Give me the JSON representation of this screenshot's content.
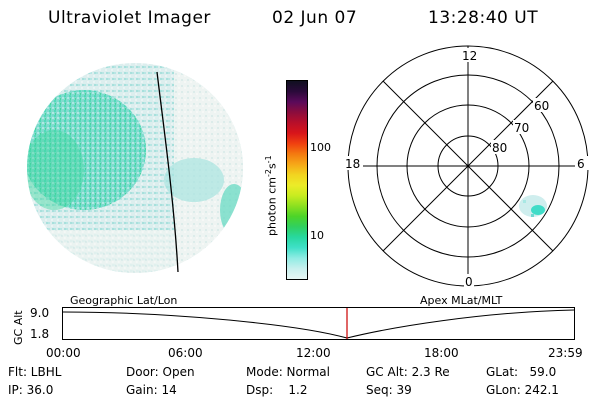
{
  "header": {
    "title": "Ultraviolet Imager",
    "date": "02 Jun 07",
    "time": "13:28:40 UT"
  },
  "colorbar": {
    "label_html_parts": [
      "photon cm",
      "-2",
      "s",
      "-1"
    ],
    "ticks": [
      "100",
      "10"
    ],
    "colors": [
      "#101020",
      "#2a0a3a",
      "#5a0a5a",
      "#8b0d3d",
      "#b80f2a",
      "#d8151a",
      "#f04010",
      "#f47a10",
      "#f6a818",
      "#f2d420",
      "#ecec28",
      "#c8ec20",
      "#8ce020",
      "#4cd428",
      "#30d060",
      "#28d8a0",
      "#40e0c8",
      "#90ece4",
      "#c8f0ee",
      "#e8f6f4"
    ]
  },
  "polar": {
    "labels": {
      "top": "12",
      "bottom": "0",
      "left": "18",
      "right": "6",
      "lat60": "60",
      "lat70": "70",
      "lat80": "80"
    }
  },
  "timeline": {
    "left_title": "Geographic Lat/Lon",
    "right_title": "Apex MLat/MLT",
    "ylabel": "GC Alt",
    "y_top": "9.0",
    "y_bottom": "1.8",
    "x_ticks": [
      "00:00",
      "06:00",
      "12:00",
      "18:00",
      "23:59"
    ],
    "marker_color": "#cc0000"
  },
  "info": {
    "flt": "Flt: LBHL",
    "ip": "IP: 36.0",
    "door": "Door: Open",
    "gain": "Gain: 14",
    "mode": "Mode: Normal",
    "dsp": "Dsp:    1.2",
    "gcalt": "GC Alt: 2.3 Re",
    "seq": "Seq: 39",
    "glat": "GLat:   59.0",
    "glon": "GLon: 242.1"
  }
}
